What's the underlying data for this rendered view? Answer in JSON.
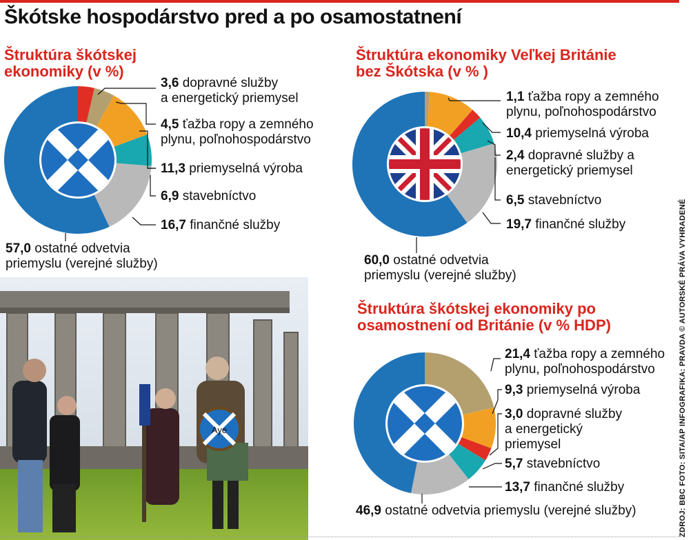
{
  "title": "Škótske hospodárstvo pred a po osamostatnení",
  "colors": {
    "accent": "#d9251d",
    "other": "#1f74b8",
    "finance": "#b9b9b9",
    "construction": "#19a7b0",
    "manufacturing": "#f2a024",
    "oil": "#b3a06e",
    "transport": "#e02e25"
  },
  "chart_data": [
    {
      "type": "pie",
      "title": "Štruktúra škótskej ekonomiky (v %)",
      "slices": [
        {
          "value": "3,6",
          "label_lines": [
            "dopravné služby",
            "a energetický priemysel"
          ]
        },
        {
          "value": "4,5",
          "label_lines": [
            "ťažba ropy a zemného",
            "plynu, poľnohospodárstvo"
          ]
        },
        {
          "value": "11,3",
          "label_lines": [
            "priemyselná výroba"
          ]
        },
        {
          "value": "6,9",
          "label_lines": [
            "stavebníctvo"
          ]
        },
        {
          "value": "16,7",
          "label_lines": [
            "finančné služby"
          ]
        },
        {
          "value": "57,0",
          "label_lines": [
            "ostatné odvetvia",
            "priemyslu (verejné služby)"
          ]
        }
      ]
    },
    {
      "type": "pie",
      "title": "Štruktúra ekonomiky Veľkej Británie bez Škótska (v % )",
      "slices": [
        {
          "value": "1,1",
          "label_lines": [
            "ťažba ropy a zemného",
            "plynu, poľnohospodárstvo"
          ]
        },
        {
          "value": "10,4",
          "label_lines": [
            "priemyselná výroba"
          ]
        },
        {
          "value": "2,4",
          "label_lines": [
            "dopravné služby a",
            "energetický priemysel"
          ]
        },
        {
          "value": "6,5",
          "label_lines": [
            "stavebníctvo"
          ]
        },
        {
          "value": "19,7",
          "label_lines": [
            "finančné služby"
          ]
        },
        {
          "value": "60,0",
          "label_lines": [
            "ostatné odvetvia",
            "priemyslu (verejné služby)"
          ]
        }
      ]
    },
    {
      "type": "pie",
      "title": "Štruktúra škótskej ekonomiky po osamostnení od Británie (v % HDP)",
      "slices": [
        {
          "value": "21,4",
          "label_lines": [
            "ťažba ropy a zemného",
            "plynu, poľnohospodárstvo"
          ]
        },
        {
          "value": "9,3",
          "label_lines": [
            "priemyselná výroba"
          ]
        },
        {
          "value": "3,0",
          "label_lines": [
            "dopravné služby",
            "a energetický",
            "priemysel"
          ]
        },
        {
          "value": "5,7",
          "label_lines": [
            "stavebníctvo"
          ]
        },
        {
          "value": "13,7",
          "label_lines": [
            "finančné služby"
          ]
        },
        {
          "value": "46,9",
          "label_lines": [
            "ostatné odvetvia priemyslu (verejné služby)"
          ]
        }
      ]
    }
  ],
  "photo": {
    "shield_text": "Aye"
  },
  "source": "ZDROJ: BBC   FOTO: SITA/AP   INFOGRAFIKA: PRAVDA © AUTORSKÉ PRÁVA VYHRADENÉ"
}
